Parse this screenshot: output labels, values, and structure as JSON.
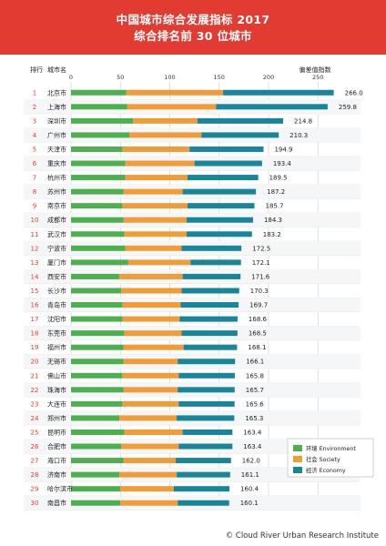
{
  "header": {
    "title": "中国城市综合发展指标 2017",
    "subtitle": "综合排名前 30 位城市"
  },
  "footer": {
    "credit": "© Cloud River Urban Research Institute"
  },
  "colors": {
    "banner": "#e23b32",
    "environment": "#4caf50",
    "society": "#f29c38",
    "economy": "#17859a"
  },
  "chart_data": {
    "type": "bar",
    "orientation": "horizontal",
    "stacked": true,
    "column_headers": {
      "rank": "排行",
      "city": "城市名",
      "total": "偏差值指数"
    },
    "x_ticks": [
      0,
      50,
      100,
      150,
      200,
      250
    ],
    "xlim": [
      0,
      270
    ],
    "grid": true,
    "legend_position": "bottom-right",
    "ranks": [
      1,
      2,
      3,
      4,
      5,
      6,
      7,
      8,
      9,
      10,
      11,
      12,
      13,
      14,
      15,
      16,
      17,
      18,
      19,
      20,
      21,
      22,
      23,
      24,
      25,
      26,
      27,
      28,
      29,
      30
    ],
    "categories": [
      "北京市",
      "上海市",
      "深圳市",
      "广州市",
      "天津市",
      "重庆市",
      "杭州市",
      "苏州市",
      "南京市",
      "成都市",
      "武汉市",
      "宁波市",
      "厦门市",
      "西安市",
      "长沙市",
      "青岛市",
      "沈阳市",
      "东莞市",
      "福州市",
      "无锡市",
      "佛山市",
      "珠海市",
      "大连市",
      "郑州市",
      "昆明市",
      "合肥市",
      "海口市",
      "济南市",
      "哈尔滨市",
      "南昌市"
    ],
    "series": [
      {
        "name": "环境 Environment",
        "color": "#4caf50",
        "values": [
          56,
          57,
          63,
          59,
          52,
          55,
          55,
          53,
          52,
          53,
          54,
          55,
          58,
          49,
          51,
          52,
          52,
          54,
          53,
          53,
          52,
          53,
          52,
          49,
          54,
          51,
          53,
          49,
          50,
          50
        ]
      },
      {
        "name": "社会 Society",
        "color": "#f29c38",
        "values": [
          98,
          90,
          65,
          73,
          68,
          70,
          63,
          60,
          66,
          64,
          63,
          57,
          63,
          64,
          61,
          59,
          58,
          58,
          61,
          55,
          57,
          55,
          57,
          58,
          59,
          58,
          53,
          58,
          54,
          58
        ]
      },
      {
        "name": "经济 Economy",
        "color": "#17859a",
        "values": [
          112,
          112.8,
          86.8,
          78.3,
          74.9,
          68.4,
          71.5,
          74.2,
          67.7,
          67.3,
          66.2,
          60.5,
          51.1,
          58.6,
          58.3,
          58.7,
          58.6,
          56.5,
          54.1,
          58.1,
          56.8,
          57.7,
          56.6,
          58.3,
          50.4,
          54.4,
          56,
          54.1,
          56.4,
          52.1
        ]
      }
    ],
    "totals": [
      "266.0",
      "259.8",
      "214.8",
      "210.3",
      "194.9",
      "193.4",
      "189.5",
      "187.2",
      "185.7",
      "184.3",
      "183.2",
      "172.5",
      "172.1",
      "171.6",
      "170.3",
      "169.7",
      "168.6",
      "168.5",
      "168.1",
      "166.1",
      "165.8",
      "165.7",
      "165.6",
      "165.3",
      "163.4",
      "163.4",
      "162.0",
      "161.1",
      "160.4",
      "160.1"
    ]
  }
}
